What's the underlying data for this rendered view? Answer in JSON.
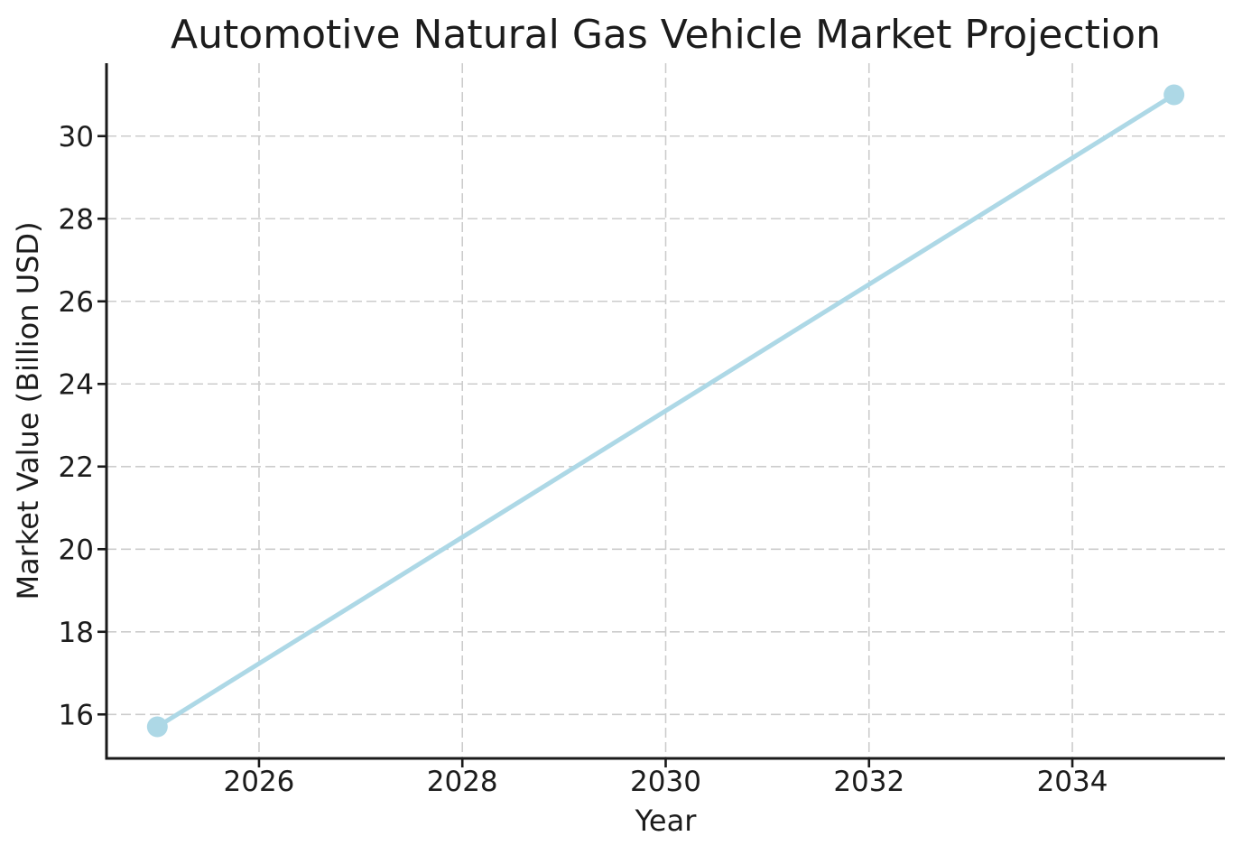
{
  "chart_data": {
    "type": "line",
    "title": "Automotive Natural Gas Vehicle Market Projection",
    "xlabel": "Year",
    "ylabel": "Market Value (Billion USD)",
    "series": [
      {
        "name": "Market Value (Billion USD)",
        "x": [
          2025,
          2035
        ],
        "values": [
          15.7,
          31.0
        ]
      }
    ],
    "xticks": [
      2026,
      2028,
      2030,
      2032,
      2034
    ],
    "yticks": [
      16,
      18,
      20,
      22,
      24,
      26,
      28,
      30
    ],
    "xlim": [
      2024.5,
      2035.5
    ],
    "ylim": [
      14.935,
      31.765
    ],
    "grid": "dashed",
    "legend_position": "none",
    "line_color": "#ADD8E6",
    "marker": "circle",
    "grid_color": "#cccccc",
    "spine_color": "#1a1a1a",
    "text_color": "#1c1c1c",
    "background_color": "#ffffff"
  }
}
